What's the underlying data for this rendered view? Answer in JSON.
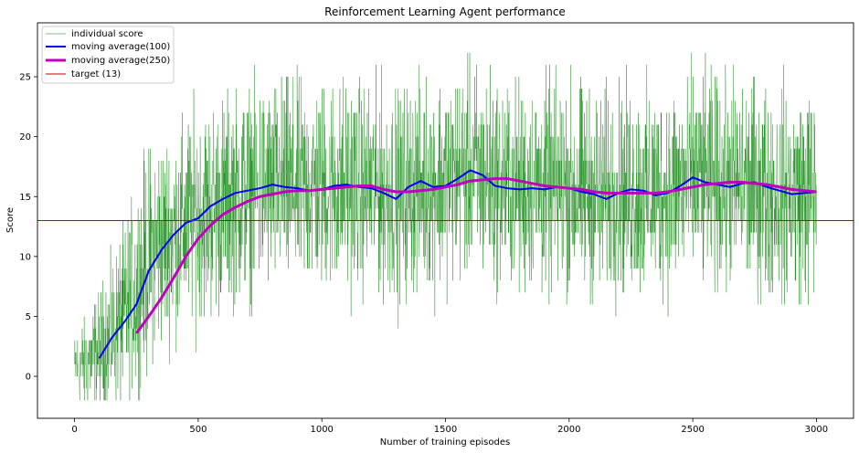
{
  "chart_data": {
    "type": "line",
    "title": "Reinforcement Learning Agent performance",
    "xlabel": "Number of training episodes",
    "ylabel": "Score",
    "xlim": [
      -150,
      3150
    ],
    "ylim": [
      -3.5,
      29.5
    ],
    "x_ticks": [
      0,
      500,
      1000,
      1500,
      2000,
      2500,
      3000
    ],
    "y_ticks": [
      0,
      5,
      10,
      15,
      20,
      25
    ],
    "grid": false,
    "legend_position": "top-left",
    "series": [
      {
        "name": "individual score",
        "color": "#008000",
        "kind": "noisy",
        "episodes": 3000,
        "trend_x": [
          0,
          100,
          200,
          250,
          300,
          400,
          500,
          600,
          700,
          800,
          900,
          1000,
          1100,
          1200,
          1300,
          1400,
          1500,
          1600,
          1700,
          1800,
          1900,
          2000,
          2100,
          2200,
          2300,
          2400,
          2500,
          2600,
          2700,
          2800,
          2900,
          3000
        ],
        "trend_y": [
          0.5,
          2,
          5,
          7,
          10,
          12,
          13.5,
          14.5,
          15.5,
          15.8,
          15.7,
          15.8,
          15.9,
          15.8,
          15.0,
          16.0,
          16.2,
          17.0,
          16.2,
          15.8,
          15.8,
          15.7,
          15.2,
          15.5,
          15.2,
          15.6,
          16.5,
          16.0,
          16.0,
          15.5,
          15.2,
          15.4
        ],
        "min": -2,
        "max": 28
      },
      {
        "name": "moving average(100)",
        "color": "#0000ee",
        "x": [
          100,
          150,
          200,
          250,
          300,
          350,
          400,
          450,
          500,
          550,
          600,
          650,
          700,
          750,
          800,
          850,
          900,
          950,
          1000,
          1050,
          1100,
          1150,
          1200,
          1250,
          1300,
          1350,
          1400,
          1450,
          1500,
          1550,
          1600,
          1650,
          1700,
          1750,
          1800,
          1850,
          1900,
          1950,
          2000,
          2050,
          2100,
          2150,
          2200,
          2250,
          2300,
          2350,
          2400,
          2450,
          2500,
          2550,
          2600,
          2650,
          2700,
          2750,
          2800,
          2850,
          2900,
          2950,
          3000
        ],
        "y": [
          1.5,
          3.2,
          4.5,
          6.0,
          8.8,
          10.5,
          11.8,
          12.8,
          13.2,
          14.2,
          14.8,
          15.3,
          15.5,
          15.7,
          16.0,
          15.8,
          15.7,
          15.5,
          15.6,
          15.9,
          16.0,
          15.8,
          15.7,
          15.3,
          14.8,
          15.8,
          16.3,
          15.8,
          15.9,
          16.5,
          17.2,
          16.8,
          15.9,
          15.7,
          15.6,
          15.7,
          15.6,
          15.8,
          15.7,
          15.4,
          15.2,
          14.8,
          15.3,
          15.6,
          15.5,
          15.1,
          15.3,
          15.9,
          16.6,
          16.2,
          16.0,
          15.8,
          16.1,
          16.2,
          15.8,
          15.5,
          15.2,
          15.3,
          15.4
        ]
      },
      {
        "name": "moving average(250)",
        "color": "#c000c0",
        "x": [
          250,
          300,
          350,
          400,
          450,
          500,
          550,
          600,
          650,
          700,
          750,
          800,
          850,
          900,
          950,
          1000,
          1050,
          1100,
          1150,
          1200,
          1250,
          1300,
          1350,
          1400,
          1450,
          1500,
          1550,
          1600,
          1650,
          1700,
          1750,
          1800,
          1850,
          1900,
          1950,
          2000,
          2050,
          2100,
          2150,
          2200,
          2250,
          2300,
          2350,
          2400,
          2450,
          2500,
          2550,
          2600,
          2650,
          2700,
          2750,
          2800,
          2850,
          2900,
          2950,
          3000
        ],
        "y": [
          3.6,
          5.0,
          6.5,
          8.2,
          10.0,
          11.5,
          12.6,
          13.5,
          14.1,
          14.6,
          15.0,
          15.2,
          15.4,
          15.5,
          15.5,
          15.6,
          15.7,
          15.8,
          15.9,
          15.9,
          15.6,
          15.4,
          15.4,
          15.5,
          15.6,
          15.8,
          16.0,
          16.3,
          16.4,
          16.5,
          16.5,
          16.3,
          16.1,
          15.9,
          15.8,
          15.7,
          15.6,
          15.4,
          15.3,
          15.3,
          15.3,
          15.3,
          15.3,
          15.4,
          15.6,
          15.8,
          16.0,
          16.1,
          16.2,
          16.2,
          16.1,
          16.0,
          15.8,
          15.6,
          15.5,
          15.4
        ]
      },
      {
        "name": "target (13)",
        "color": "#cc0000",
        "kind": "hline",
        "y": 13
      }
    ]
  }
}
